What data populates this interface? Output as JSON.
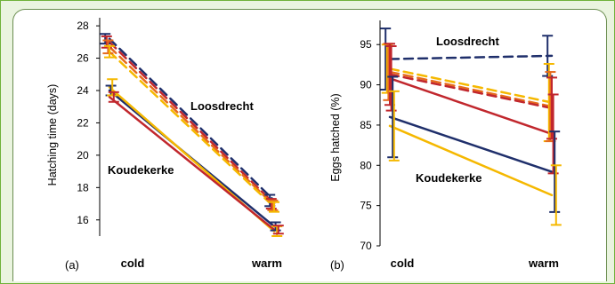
{
  "colors": {
    "navy": "#1f2f6b",
    "red": "#c1272d",
    "orange": "#e66b1e",
    "yellow": "#f5b800",
    "border": "#6fb23a",
    "background": "#eaf4df"
  },
  "chart_data": [
    {
      "panel": "(a)",
      "type": "line",
      "categories": [
        "cold",
        "warm"
      ],
      "ylabel": "Hatching time (days)",
      "ylim": [
        15,
        28.5
      ],
      "yticks": [
        "16",
        "18",
        "20",
        "22",
        "24",
        "26",
        "28"
      ],
      "annotations": [
        "Loosdrecht",
        "Koudekerke"
      ],
      "series": [
        {
          "group": "Loosdrecht",
          "color": "#1f2f6b",
          "style": "dashed",
          "values": [
            27.2,
            17.2
          ],
          "error": [
            0.3,
            0.35
          ]
        },
        {
          "group": "Loosdrecht",
          "color": "#c1272d",
          "style": "dashed",
          "values": [
            27.0,
            17.0
          ],
          "error": [
            0.35,
            0.3
          ]
        },
        {
          "group": "Loosdrecht",
          "color": "#e66b1e",
          "style": "dashed",
          "values": [
            26.7,
            16.9
          ],
          "error": [
            0.4,
            0.3
          ]
        },
        {
          "group": "Loosdrecht",
          "color": "#f5b800",
          "style": "dashed",
          "values": [
            26.4,
            16.8
          ],
          "error": [
            0.35,
            0.3
          ]
        },
        {
          "group": "Koudekerke",
          "color": "#1f2f6b",
          "style": "solid",
          "values": [
            24.0,
            15.6
          ],
          "error": [
            0.3,
            0.25
          ]
        },
        {
          "group": "Koudekerke",
          "color": "#f5b800",
          "style": "solid",
          "values": [
            24.2,
            15.3
          ],
          "error": [
            0.5,
            0.3
          ]
        },
        {
          "group": "Koudekerke",
          "color": "#c1272d",
          "style": "solid",
          "values": [
            23.6,
            15.4
          ],
          "error": [
            0.3,
            0.25
          ]
        }
      ]
    },
    {
      "panel": "(b)",
      "type": "line",
      "categories": [
        "cold",
        "warm"
      ],
      "ylabel": "Eggs hatched (%)",
      "ylim": [
        70,
        98
      ],
      "yticks": [
        "70",
        "75",
        "80",
        "85",
        "90",
        "95"
      ],
      "annotations": [
        "Loosdrecht",
        "Koudekerke"
      ],
      "series": [
        {
          "group": "Loosdrecht",
          "color": "#1f2f6b",
          "style": "dashed",
          "values": [
            93.2,
            93.6
          ],
          "error": [
            3.8,
            2.5
          ]
        },
        {
          "group": "Loosdrecht",
          "color": "#f5b800",
          "style": "dashed",
          "values": [
            92.0,
            87.8
          ],
          "error": [
            3.0,
            4.8
          ]
        },
        {
          "group": "Loosdrecht",
          "color": "#e66b1e",
          "style": "dashed",
          "values": [
            91.6,
            87.3
          ],
          "error": [
            3.5,
            4.3
          ]
        },
        {
          "group": "Loosdrecht",
          "color": "#c1272d",
          "style": "dashed",
          "values": [
            91.3,
            87.1
          ],
          "error": [
            3.8,
            3.8
          ]
        },
        {
          "group": "Koudekerke",
          "color": "#c1272d",
          "style": "solid",
          "values": [
            90.8,
            83.9
          ],
          "error": [
            4.0,
            4.9
          ]
        },
        {
          "group": "Koudekerke",
          "color": "#1f2f6b",
          "style": "solid",
          "values": [
            86.0,
            79.2
          ],
          "error": [
            5.0,
            5.0
          ]
        },
        {
          "group": "Koudekerke",
          "color": "#f5b800",
          "style": "solid",
          "values": [
            84.9,
            76.3
          ],
          "error": [
            4.3,
            3.7
          ]
        }
      ]
    }
  ]
}
